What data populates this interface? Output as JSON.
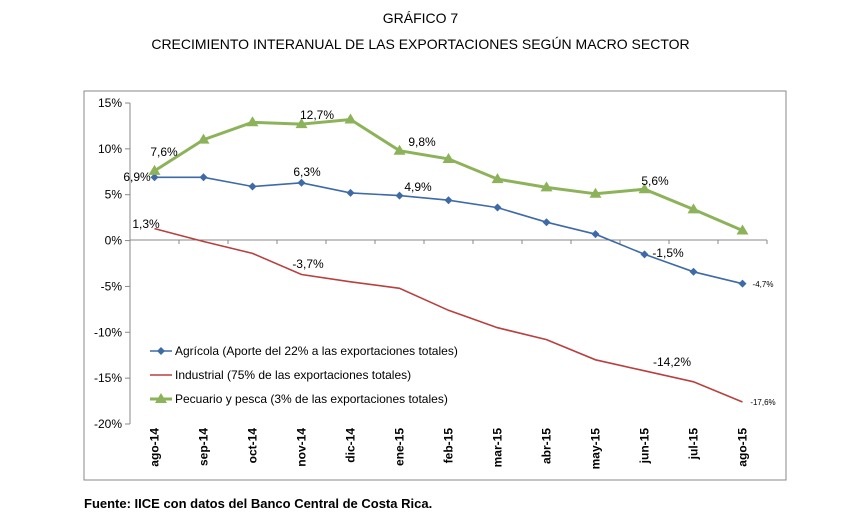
{
  "title": "GRÁFICO 7",
  "subtitle": "CRECIMIENTO INTERANUAL DE LAS EXPORTACIONES SEGÚN MACRO SECTOR",
  "source": "Fuente: IICE con datos del Banco Central de Costa Rica.",
  "chart_data": {
    "type": "line",
    "categories": [
      "ago-14",
      "sep-14",
      "oct-14",
      "nov-14",
      "dic-14",
      "ene-15",
      "feb-15",
      "mar-15",
      "abr-15",
      "may-15",
      "jun-15",
      "jul-15",
      "ago-15"
    ],
    "yticks": [
      "15%",
      "10%",
      "5%",
      "0%",
      "-5%",
      "-10%",
      "-15%",
      "-20%"
    ],
    "ylim": [
      -20,
      15
    ],
    "grid": false,
    "legend_position": "bottom-left",
    "series": [
      {
        "name": "Agrícola (Aporte del 22% a las exportaciones totales)",
        "color": "#3E6AA8",
        "marker": "diamond",
        "values": [
          6.9,
          6.9,
          5.9,
          6.3,
          5.2,
          4.9,
          4.4,
          3.6,
          2.0,
          0.7,
          -1.5,
          -3.4,
          -4.7
        ],
        "labels": {
          "0": "6,9%",
          "3": "6,3%",
          "5": "4,9%",
          "10": "-1,5%",
          "12": "-4,7%"
        }
      },
      {
        "name": "Industrial (75% de las exportaciones totales)",
        "color": "#B8403F",
        "marker": "none",
        "values": [
          1.3,
          -0.1,
          -1.4,
          -3.7,
          -4.5,
          -5.2,
          -7.6,
          -9.5,
          -10.8,
          -13.0,
          -14.2,
          -15.4,
          -17.6
        ],
        "labels": {
          "0": "1,3%",
          "3": "-3,7%",
          "10": "-14,2%",
          "12": "-17,6%"
        }
      },
      {
        "name": "Pecuario y pesca (3% de las exportaciones totales)",
        "color": "#8DB35A",
        "marker": "triangle",
        "values": [
          7.6,
          11.0,
          12.9,
          12.7,
          13.2,
          9.8,
          8.9,
          6.7,
          5.8,
          5.1,
          5.6,
          3.4,
          1.1
        ],
        "labels": {
          "0": "7,6%",
          "3": "12,7%",
          "5": "9,8%",
          "10": "5,6%"
        }
      }
    ]
  }
}
